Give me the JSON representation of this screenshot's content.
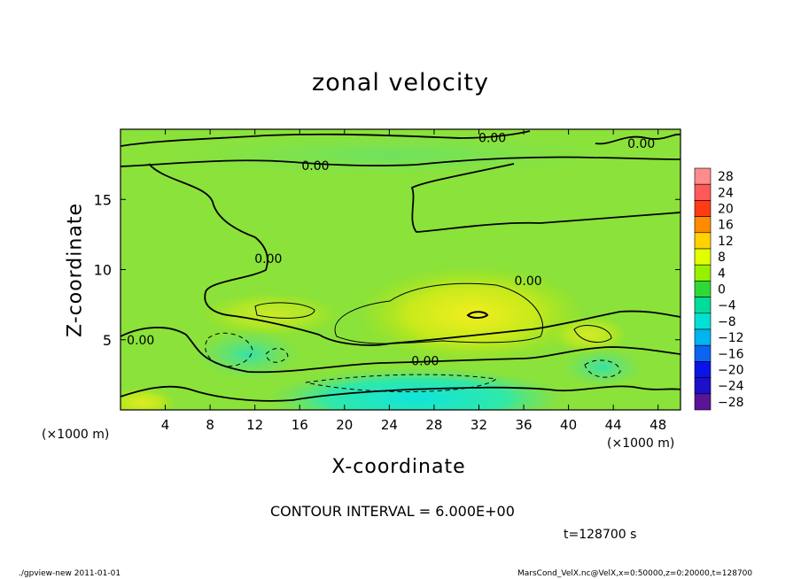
{
  "chart_data": {
    "type": "heatmap",
    "title": "zonal velocity",
    "xlabel": "X-coordinate",
    "ylabel": "Z-coordinate",
    "x_unit_label": "(×1000 m)",
    "xlim": [
      0,
      50
    ],
    "ylim": [
      0,
      20
    ],
    "x_ticks": [
      4,
      8,
      12,
      16,
      20,
      24,
      28,
      32,
      36,
      40,
      44,
      48
    ],
    "y_ticks": [
      5,
      10,
      15
    ],
    "colorbar_levels": [
      28,
      24,
      20,
      16,
      12,
      8,
      4,
      0,
      -4,
      -8,
      -12,
      -16,
      -20,
      -24,
      -28
    ],
    "colorbar_colors": [
      "#ff8c8c",
      "#ff5a5a",
      "#ff3c14",
      "#ff8c00",
      "#ffd200",
      "#e1ff00",
      "#96f000",
      "#30d836",
      "#00dc9a",
      "#00e1d4",
      "#00b4f0",
      "#0a64f0",
      "#0a14e6",
      "#1e0fc8",
      "#5a1496"
    ],
    "contour_labels": [
      {
        "text": "0.00",
        "x": 33.2,
        "z": 19.4
      },
      {
        "text": "0.00",
        "x": 46.5,
        "z": 19.0
      },
      {
        "text": "0.00",
        "x": 17.4,
        "z": 17.4
      },
      {
        "text": "0.00",
        "x": 13.2,
        "z": 10.8
      },
      {
        "text": "0.00",
        "x": 36.4,
        "z": 9.2
      },
      {
        "text": "0.00",
        "x": 27.2,
        "z": 3.5
      },
      {
        "text": "0.00",
        "x": 1.8,
        "z": 5.0
      }
    ],
    "contour_interval": "CONTOUR INTERVAL = 6.000E+00",
    "time": "t=128700 s"
  },
  "footer": {
    "left": "./gpview-new  2011-01-01",
    "right": "MarsCond_VelX.nc@VelX,x=0:50000,z=0:20000,t=128700"
  }
}
